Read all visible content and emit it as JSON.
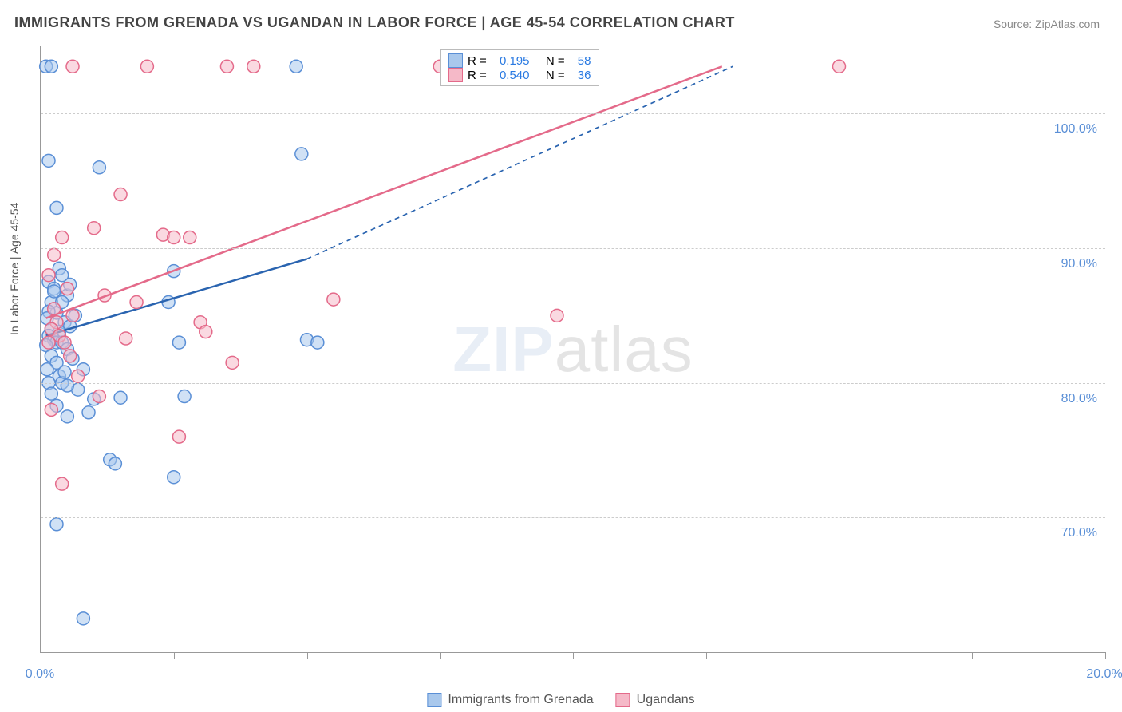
{
  "title": "IMMIGRANTS FROM GRENADA VS UGANDAN IN LABOR FORCE | AGE 45-54 CORRELATION CHART",
  "source_label": "Source: ZipAtlas.com",
  "ylabel": "In Labor Force | Age 45-54",
  "watermark_a": "ZIP",
  "watermark_b": "atlas",
  "chart": {
    "type": "scatter-correlation",
    "background_color": "#ffffff",
    "grid_color": "#cccccc",
    "axis_color": "#999999",
    "tick_label_color": "#5a8fd6",
    "xlim": [
      0,
      20
    ],
    "ylim": [
      60,
      105
    ],
    "ytick_values": [
      70,
      80,
      90,
      100
    ],
    "ytick_labels": [
      "70.0%",
      "80.0%",
      "90.0%",
      "100.0%"
    ],
    "xtick_values": [
      0,
      2.5,
      5,
      7.5,
      10,
      12.5,
      15,
      17.5,
      20
    ],
    "xtick_labels": {
      "0": "0.0%",
      "20": "20.0%"
    },
    "marker_radius": 8,
    "marker_stroke_width": 1.5,
    "series": [
      {
        "name": "Immigrants from Grenada",
        "key": "grenada",
        "fill": "#a9c8ec",
        "stroke": "#5a8fd6",
        "fill_opacity": 0.55,
        "R": "0.195",
        "N": "58",
        "trend": {
          "x1": 0.1,
          "y1": 83.5,
          "x2_solid": 5.0,
          "y2_solid": 89.2,
          "x2_dash": 13.0,
          "y2_dash": 103.5,
          "color": "#2a64b0",
          "width": 2.5,
          "dash": "6,5"
        },
        "points": [
          [
            0.1,
            103.5
          ],
          [
            0.2,
            103.5
          ],
          [
            0.15,
            96.5
          ],
          [
            1.1,
            96.0
          ],
          [
            0.3,
            93.0
          ],
          [
            0.35,
            88.5
          ],
          [
            0.4,
            88.0
          ],
          [
            0.15,
            87.5
          ],
          [
            0.25,
            87.0
          ],
          [
            0.5,
            86.5
          ],
          [
            0.2,
            86.0
          ],
          [
            0.3,
            85.2
          ],
          [
            0.15,
            85.3
          ],
          [
            0.45,
            84.5
          ],
          [
            0.2,
            84.0
          ],
          [
            0.55,
            84.2
          ],
          [
            0.35,
            83.8
          ],
          [
            0.15,
            83.5
          ],
          [
            0.25,
            83.2
          ],
          [
            0.3,
            83.0
          ],
          [
            0.4,
            83.0
          ],
          [
            0.1,
            82.8
          ],
          [
            0.5,
            82.5
          ],
          [
            0.2,
            82.0
          ],
          [
            0.6,
            81.8
          ],
          [
            0.3,
            81.5
          ],
          [
            0.8,
            81.0
          ],
          [
            0.35,
            80.5
          ],
          [
            0.15,
            80.0
          ],
          [
            0.4,
            80.0
          ],
          [
            0.7,
            79.5
          ],
          [
            1.0,
            78.8
          ],
          [
            1.5,
            78.9
          ],
          [
            2.4,
            86.0
          ],
          [
            2.5,
            88.3
          ],
          [
            2.6,
            83.0
          ],
          [
            2.7,
            79.0
          ],
          [
            4.8,
            103.5
          ],
          [
            4.9,
            97.0
          ],
          [
            5.0,
            83.2
          ],
          [
            5.2,
            83.0
          ],
          [
            0.9,
            77.8
          ],
          [
            0.5,
            77.5
          ],
          [
            1.3,
            74.3
          ],
          [
            1.4,
            74.0
          ],
          [
            2.5,
            73.0
          ],
          [
            0.3,
            69.5
          ],
          [
            0.8,
            62.5
          ],
          [
            0.25,
            86.8
          ],
          [
            0.55,
            87.3
          ],
          [
            0.65,
            85.0
          ],
          [
            0.12,
            84.8
          ],
          [
            0.4,
            86.0
          ],
          [
            0.2,
            79.2
          ],
          [
            0.3,
            78.3
          ],
          [
            0.5,
            79.8
          ],
          [
            0.12,
            81.0
          ],
          [
            0.45,
            80.8
          ]
        ]
      },
      {
        "name": "Ugandans",
        "key": "ugandans",
        "fill": "#f5b9c8",
        "stroke": "#e46a8a",
        "fill_opacity": 0.55,
        "R": "0.540",
        "N": "36",
        "trend": {
          "x1": 0.1,
          "y1": 84.8,
          "x2_solid": 12.8,
          "y2_solid": 103.5,
          "x2_dash": 12.8,
          "y2_dash": 103.5,
          "color": "#e46a8a",
          "width": 2.5,
          "dash": ""
        },
        "points": [
          [
            0.6,
            103.5
          ],
          [
            2.0,
            103.5
          ],
          [
            3.5,
            103.5
          ],
          [
            4.0,
            103.5
          ],
          [
            7.5,
            103.5
          ],
          [
            15.0,
            103.5
          ],
          [
            1.0,
            91.5
          ],
          [
            1.5,
            94.0
          ],
          [
            0.4,
            90.8
          ],
          [
            0.25,
            89.5
          ],
          [
            0.15,
            88.0
          ],
          [
            0.5,
            87.0
          ],
          [
            1.2,
            86.5
          ],
          [
            1.8,
            86.0
          ],
          [
            2.3,
            91.0
          ],
          [
            2.5,
            90.8
          ],
          [
            2.8,
            90.8
          ],
          [
            3.0,
            84.5
          ],
          [
            3.1,
            83.8
          ],
          [
            3.6,
            81.5
          ],
          [
            5.5,
            86.2
          ],
          [
            9.7,
            85.0
          ],
          [
            0.3,
            84.5
          ],
          [
            0.2,
            84.0
          ],
          [
            0.35,
            83.5
          ],
          [
            0.45,
            83.0
          ],
          [
            0.15,
            83.0
          ],
          [
            0.55,
            82.0
          ],
          [
            0.7,
            80.5
          ],
          [
            1.1,
            79.0
          ],
          [
            1.6,
            83.3
          ],
          [
            0.2,
            78.0
          ],
          [
            2.6,
            76.0
          ],
          [
            0.4,
            72.5
          ],
          [
            0.25,
            85.5
          ],
          [
            0.6,
            85.0
          ]
        ]
      }
    ],
    "legend_top": {
      "row1_prefix": "R =",
      "row1_mid": "N =",
      "row2_prefix": "R =",
      "row2_mid": "N ="
    },
    "bottom_legend": [
      {
        "key": "grenada",
        "label": "Immigrants from Grenada"
      },
      {
        "key": "ugandans",
        "label": "Ugandans"
      }
    ]
  }
}
